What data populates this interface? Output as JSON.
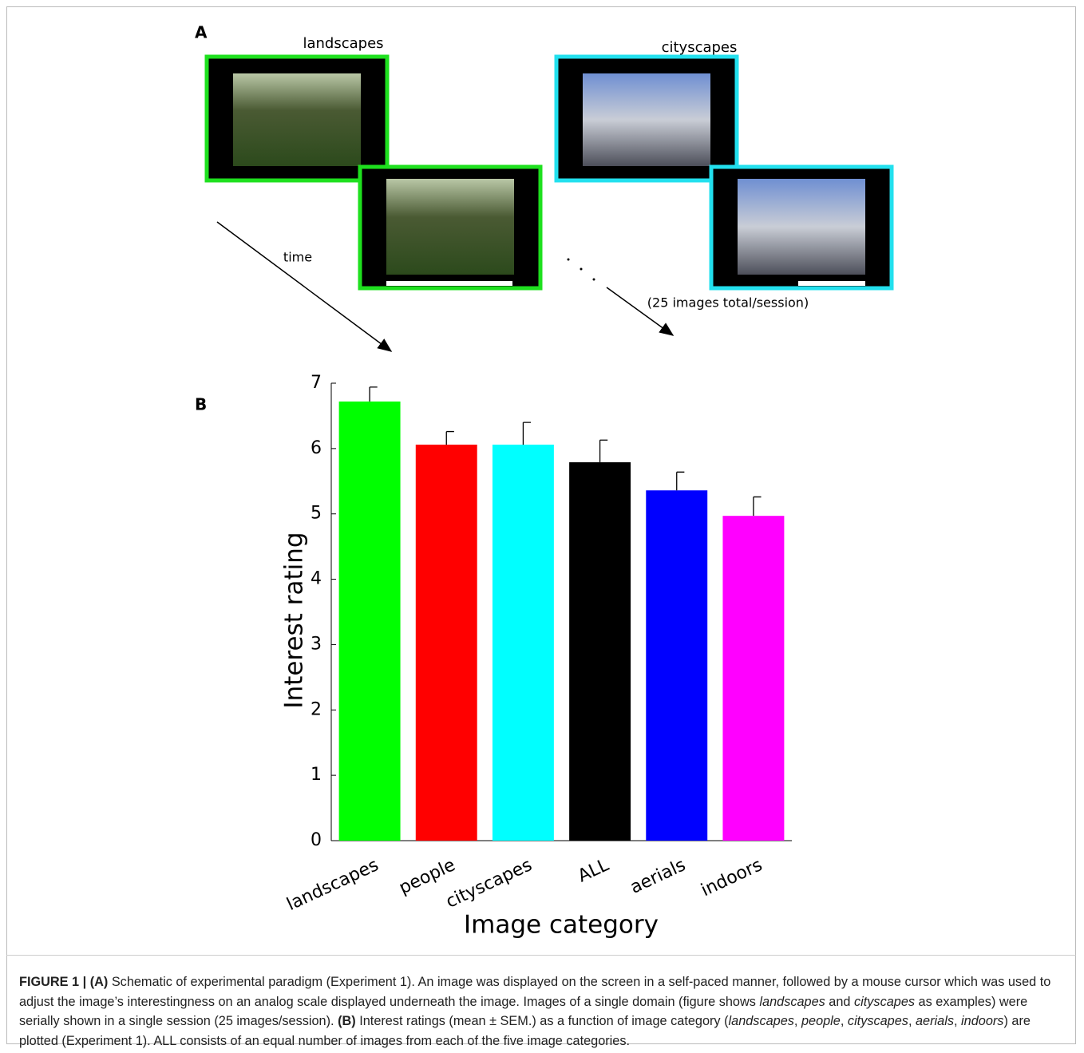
{
  "panel_a": {
    "label": "A",
    "left_title": "landscapes",
    "right_title": "cityscapes",
    "time_label": "time",
    "total_label": "(25 images total/session)"
  },
  "panel_b_label": "B",
  "chart_data": {
    "type": "bar",
    "x_label": "Image category",
    "y_label": "Interest rating",
    "categories": [
      "landscapes",
      "people",
      "cityscapes",
      "ALL",
      "aerials",
      "indoors"
    ],
    "values": [
      6.72,
      6.06,
      6.06,
      5.79,
      5.36,
      4.97
    ],
    "errors": [
      0.22,
      0.2,
      0.34,
      0.34,
      0.28,
      0.29
    ],
    "colors": [
      "#00ff00",
      "#ff0000",
      "#00ffff",
      "#000000",
      "#0000ff",
      "#ff00ff"
    ],
    "ylim": [
      0,
      7
    ],
    "yticks": [
      0,
      1,
      2,
      3,
      4,
      5,
      6,
      7
    ],
    "grid": false
  },
  "caption": {
    "parts": [
      "FIGURE 1 | (A)",
      " Schematic of experimental paradigm (Experiment 1). An image was displayed on the screen in a self-paced manner, followed by a mouse cursor which was used to adjust the image’s interestingness on an analog scale displayed underneath the image. Images of a single domain (figure shows ",
      "landscapes",
      " and ",
      "cityscapes",
      " as examples) were serially shown in a single session (25 images/session). ",
      "(B)",
      " Interest ratings (mean ± SEM.) as a function of image category (",
      "landscapes",
      ", ",
      "people",
      ", ",
      "cityscapes",
      ", ",
      "aerials",
      ", ",
      "indoors",
      ") are plotted (Experiment 1). ALL consists of an equal number of images from each of the five image categories."
    ]
  }
}
